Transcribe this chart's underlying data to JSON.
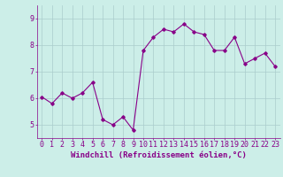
{
  "x": [
    0,
    1,
    2,
    3,
    4,
    5,
    6,
    7,
    8,
    9,
    10,
    11,
    12,
    13,
    14,
    15,
    16,
    17,
    18,
    19,
    20,
    21,
    22,
    23
  ],
  "y": [
    6.05,
    5.8,
    6.2,
    6.0,
    6.2,
    6.6,
    5.2,
    5.0,
    5.3,
    4.8,
    7.8,
    8.3,
    8.6,
    8.5,
    8.8,
    8.5,
    8.4,
    7.8,
    7.8,
    8.3,
    7.3,
    7.5,
    7.7,
    7.2
  ],
  "line_color": "#880088",
  "marker": "D",
  "markersize": 1.8,
  "linewidth": 0.8,
  "bg_color": "#cceee8",
  "grid_color": "#aacccc",
  "xlabel": "Windchill (Refroidissement éolien,°C)",
  "xlabel_fontsize": 6.5,
  "tick_fontsize": 6,
  "xlim": [
    -0.5,
    23.5
  ],
  "ylim": [
    4.5,
    9.5
  ],
  "yticks": [
    5,
    6,
    7,
    8,
    9
  ],
  "xticks": [
    0,
    1,
    2,
    3,
    4,
    5,
    6,
    7,
    8,
    9,
    10,
    11,
    12,
    13,
    14,
    15,
    16,
    17,
    18,
    19,
    20,
    21,
    22,
    23
  ]
}
